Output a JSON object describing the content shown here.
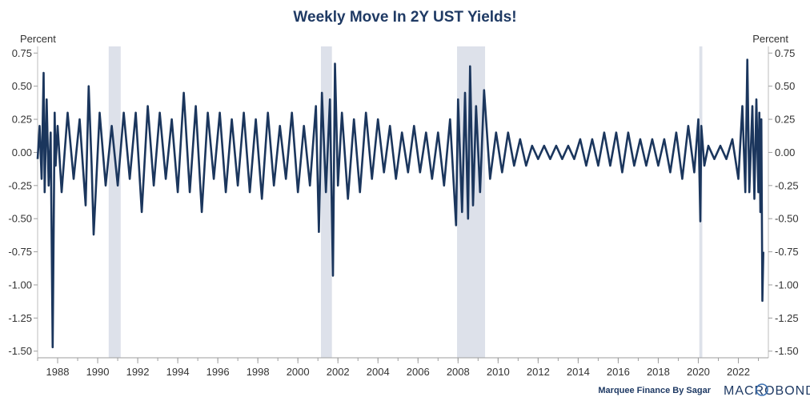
{
  "chart_data": {
    "type": "line",
    "title": "Weekly Move In 2Y UST Yields!",
    "left_unit": "Percent",
    "right_unit": "Percent",
    "xlim": [
      1987.0,
      2023.5
    ],
    "ylim": [
      -1.55,
      0.8
    ],
    "y_ticks": [
      0.75,
      0.5,
      0.25,
      0.0,
      -0.25,
      -0.5,
      -0.75,
      -1.0,
      -1.25,
      -1.5
    ],
    "y_tick_labels": [
      "0.75",
      "0.50",
      "0.25",
      "0.00",
      "-0.25",
      "-0.50",
      "-0.75",
      "-1.00",
      "-1.25",
      "-1.50"
    ],
    "x_ticks": [
      1988,
      1990,
      1992,
      1994,
      1996,
      1998,
      2000,
      2002,
      2004,
      2006,
      2008,
      2010,
      2012,
      2014,
      2016,
      2018,
      2020,
      2022
    ],
    "x_tick_labels": [
      "1988",
      "1990",
      "1992",
      "1994",
      "1996",
      "1998",
      "2000",
      "2002",
      "2004",
      "2006",
      "2008",
      "2010",
      "2012",
      "2014",
      "2016",
      "2018",
      "2020",
      "2022"
    ],
    "recessions": [
      [
        1990.55,
        1991.15
      ],
      [
        2001.15,
        2001.7
      ],
      [
        2007.95,
        2009.35
      ],
      [
        2020.05,
        2020.2
      ]
    ],
    "series": [
      {
        "color": "#1b365d",
        "x": [
          1987.0,
          1987.1,
          1987.2,
          1987.3,
          1987.35,
          1987.45,
          1987.55,
          1987.65,
          1987.75,
          1987.85,
          1987.9,
          1988.0,
          1988.2,
          1988.5,
          1988.8,
          1989.1,
          1989.4,
          1989.55,
          1989.7,
          1989.8,
          1990.1,
          1990.4,
          1990.7,
          1991.0,
          1991.3,
          1991.6,
          1991.9,
          1992.2,
          1992.5,
          1992.8,
          1993.1,
          1993.4,
          1993.7,
          1994.0,
          1994.3,
          1994.6,
          1994.9,
          1995.2,
          1995.5,
          1995.8,
          1996.1,
          1996.4,
          1996.7,
          1997.0,
          1997.3,
          1997.6,
          1997.9,
          1998.2,
          1998.5,
          1998.8,
          1999.1,
          1999.4,
          1999.7,
          2000.0,
          2000.3,
          2000.6,
          2000.9,
          2001.05,
          2001.2,
          2001.4,
          2001.6,
          2001.75,
          2001.85,
          2002.0,
          2002.2,
          2002.5,
          2002.8,
          2003.1,
          2003.4,
          2003.7,
          2004.0,
          2004.3,
          2004.6,
          2004.9,
          2005.2,
          2005.5,
          2005.8,
          2006.1,
          2006.4,
          2006.7,
          2007.0,
          2007.3,
          2007.6,
          2007.9,
          2008.0,
          2008.2,
          2008.35,
          2008.5,
          2008.6,
          2008.75,
          2008.9,
          2009.1,
          2009.3,
          2009.6,
          2009.9,
          2010.2,
          2010.5,
          2010.8,
          2011.1,
          2011.4,
          2011.7,
          2012.0,
          2012.3,
          2012.6,
          2012.9,
          2013.2,
          2013.5,
          2013.8,
          2014.1,
          2014.4,
          2014.7,
          2015.0,
          2015.3,
          2015.6,
          2015.9,
          2016.2,
          2016.5,
          2016.8,
          2017.1,
          2017.4,
          2017.7,
          2018.0,
          2018.3,
          2018.6,
          2018.9,
          2019.2,
          2019.5,
          2019.8,
          2020.0,
          2020.1,
          2020.15,
          2020.3,
          2020.5,
          2020.8,
          2021.1,
          2021.4,
          2021.7,
          2022.0,
          2022.2,
          2022.35,
          2022.45,
          2022.55,
          2022.7,
          2022.8,
          2022.9,
          2023.0,
          2023.05,
          2023.1,
          2023.15,
          2023.2,
          2023.25
        ],
        "values": [
          -0.05,
          0.2,
          -0.2,
          0.6,
          -0.3,
          0.4,
          -0.25,
          0.15,
          -1.47,
          0.3,
          -0.1,
          0.2,
          -0.3,
          0.3,
          -0.2,
          0.25,
          -0.4,
          0.5,
          -0.1,
          -0.62,
          0.3,
          -0.25,
          0.2,
          -0.25,
          0.3,
          -0.2,
          0.3,
          -0.45,
          0.35,
          -0.25,
          0.3,
          -0.2,
          0.25,
          -0.3,
          0.45,
          -0.3,
          0.35,
          -0.45,
          0.3,
          -0.2,
          0.3,
          -0.3,
          0.25,
          -0.25,
          0.3,
          -0.3,
          0.25,
          -0.35,
          0.3,
          -0.25,
          0.2,
          -0.2,
          0.3,
          -0.3,
          0.2,
          -0.25,
          0.35,
          -0.6,
          0.45,
          -0.3,
          0.4,
          -0.93,
          0.67,
          -0.25,
          0.3,
          -0.35,
          0.25,
          -0.3,
          0.3,
          -0.2,
          0.25,
          -0.15,
          0.2,
          -0.2,
          0.15,
          -0.15,
          0.2,
          -0.15,
          0.15,
          -0.2,
          0.15,
          -0.25,
          0.25,
          -0.55,
          0.4,
          -0.45,
          0.45,
          -0.5,
          0.65,
          -0.4,
          0.35,
          -0.3,
          0.47,
          -0.2,
          0.15,
          -0.15,
          0.15,
          -0.1,
          0.1,
          -0.1,
          0.05,
          -0.05,
          0.05,
          -0.05,
          0.05,
          -0.05,
          0.05,
          -0.05,
          0.1,
          -0.1,
          0.1,
          -0.1,
          0.15,
          -0.1,
          0.15,
          -0.15,
          0.15,
          -0.1,
          0.1,
          -0.1,
          0.1,
          -0.1,
          0.1,
          -0.15,
          0.15,
          -0.2,
          0.2,
          -0.15,
          0.25,
          -0.52,
          0.2,
          -0.1,
          0.05,
          -0.05,
          0.05,
          -0.05,
          0.1,
          -0.2,
          0.35,
          -0.3,
          0.7,
          -0.3,
          0.35,
          -0.35,
          0.4,
          -0.3,
          0.3,
          -0.45,
          0.25,
          -1.12,
          -0.75
        ]
      }
    ],
    "footer": {
      "credit": "Marquee Finance By Sagar",
      "logo": "MACROBOND"
    },
    "colors": {
      "line": "#1b365d",
      "recession": "#dde1ea",
      "title": "#1f3a64"
    }
  }
}
